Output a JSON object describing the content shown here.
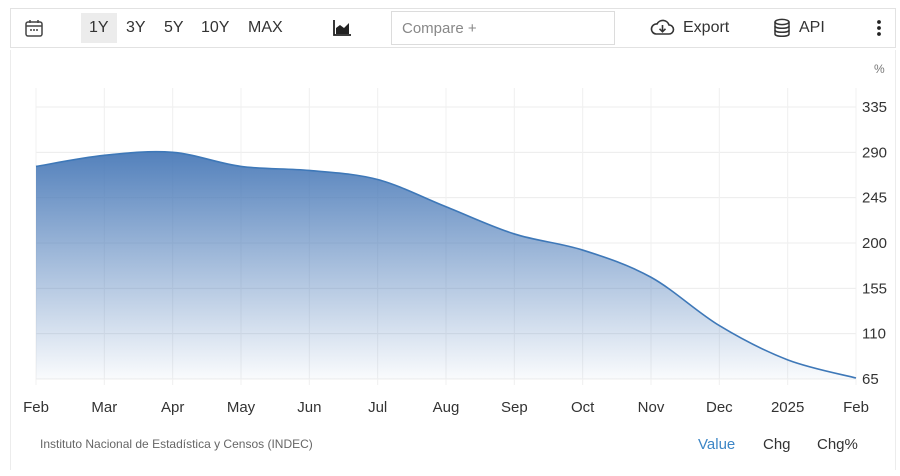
{
  "toolbar": {
    "ranges": [
      "1Y",
      "3Y",
      "5Y",
      "10Y",
      "MAX"
    ],
    "active_range": "1Y",
    "compare_placeholder": "Compare +",
    "export_label": "Export",
    "api_label": "API",
    "icons": [
      "calendar-icon",
      "area-chart-icon",
      "cloud-download-icon",
      "database-icon",
      "more-vertical-icon"
    ]
  },
  "unit_label": "%",
  "source": "Instituto Nacional de Estadística y Censos (INDEC)",
  "view_tabs": {
    "value": "Value",
    "chg": "Chg",
    "chg_pct": "Chg%",
    "active": "Value"
  },
  "colors": {
    "line": "#3e78b8",
    "fill_top": "#4a7ab8",
    "active_tab": "#3d86c6"
  },
  "chart_data": {
    "type": "area",
    "series": [
      {
        "values": [
          {
            "x": "2024-02",
            "y": 276
          },
          {
            "x": "2024-03",
            "y": 287
          },
          {
            "x": "2024-04",
            "y": 290
          },
          {
            "x": "2024-05",
            "y": 276
          },
          {
            "x": "2024-06",
            "y": 272
          },
          {
            "x": "2024-07",
            "y": 263
          },
          {
            "x": "2024-08",
            "y": 236
          },
          {
            "x": "2024-09",
            "y": 209
          },
          {
            "x": "2024-10",
            "y": 193
          },
          {
            "x": "2024-11",
            "y": 166
          },
          {
            "x": "2024-12",
            "y": 118
          },
          {
            "x": "2025-01",
            "y": 84
          },
          {
            "x": "2025-02",
            "y": 66
          }
        ]
      }
    ],
    "x_tick_labels": [
      "Feb",
      "Mar",
      "Apr",
      "May",
      "Jun",
      "Jul",
      "Aug",
      "Sep",
      "Oct",
      "Nov",
      "Dec",
      "2025",
      "Feb"
    ],
    "y_ticks": [
      65,
      110,
      155,
      200,
      245,
      290,
      335
    ],
    "ylim": [
      65,
      335
    ],
    "y_axis_side": "right",
    "grid": true,
    "legend": "none"
  }
}
